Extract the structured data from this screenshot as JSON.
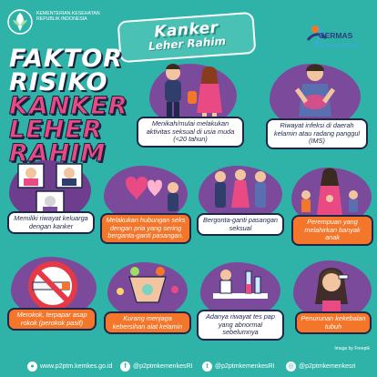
{
  "header": {
    "kemenkes": "KEMENTERIAN KESEHATAN REPUBLIK INDONESIA",
    "badge_line1": "Kanker",
    "badge_line2": "Leher Rahim",
    "germas": "GERMAS"
  },
  "title": {
    "line1": "FAKTOR",
    "line2": "RISIKO",
    "line3": "KANKER",
    "line4": "LEHER",
    "line5": "RAHIM"
  },
  "factors": [
    {
      "label": "Menikah/mulai melakukan aktivitas seksual di usia muda (<20 tahun)"
    },
    {
      "label": "Riwayat infeksi di daerah kelamin atau radang panggul (IMS)"
    },
    {
      "label": "Memiliki riwayat keluarga dengan kanker"
    },
    {
      "label": "Melakukan hubungan seks dengan pria yang sering berganta-ganti pasangan."
    },
    {
      "label": "Bergonta-ganti pasangan seksual"
    },
    {
      "label": "Perempuan yang melahirkan banyak anak"
    },
    {
      "label": "Merokok, terpapar asap rokok (perokok pasif)"
    },
    {
      "label": "Kurang menjaga kebersihan alat kelamin"
    },
    {
      "label": "Adanya riwayat tes pap yang abnormal sebelumnya"
    },
    {
      "label": "Penurunan kekebalan tubuh"
    }
  ],
  "footer": {
    "website": "www.p2ptm.kemkes.go.id",
    "facebook": "@p2ptmkemenkesRI",
    "twitter": "@p2ptmkemenkesRI",
    "instagram": "@p2ptmkemenkesri",
    "credit": "Image by Freepik"
  },
  "colors": {
    "background": "#2fb3a9",
    "blob": "#7c4a9b",
    "label_orange": "#f4762b",
    "title_pink": "#e94a84",
    "navy": "#1f2648"
  }
}
